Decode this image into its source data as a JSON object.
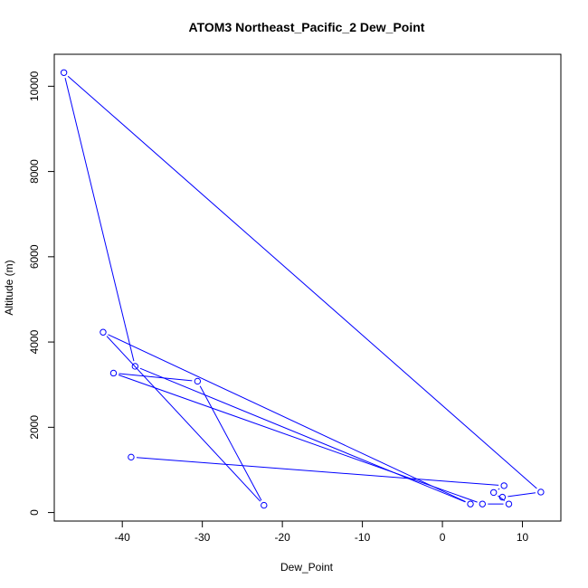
{
  "chart_data": {
    "type": "line",
    "title": "ATOM3 Northeast_Pacific_2 Dew_Point",
    "xlabel": "Dew_Point",
    "ylabel": "Altitude (m)",
    "xlim": [
      -48.5,
      14.8
    ],
    "ylim": [
      -200,
      10750
    ],
    "xticks": [
      -40,
      -30,
      -20,
      -10,
      0,
      10
    ],
    "yticks": [
      0,
      2000,
      4000,
      6000,
      8000,
      10000
    ],
    "line_color": "#0000ff",
    "marker": "open-circle",
    "grid": false,
    "series": [
      {
        "x": [
          -38.9,
          7.7,
          6.4,
          8.3,
          5.0,
          -41.1,
          -30.6,
          -22.3,
          -42.4,
          3.5,
          -38.4,
          -47.3,
          12.3,
          7.5
        ],
        "y": [
          1300,
          630,
          470,
          200,
          200,
          3270,
          3080,
          170,
          4230,
          200,
          3430,
          10320,
          480,
          360
        ]
      }
    ]
  }
}
